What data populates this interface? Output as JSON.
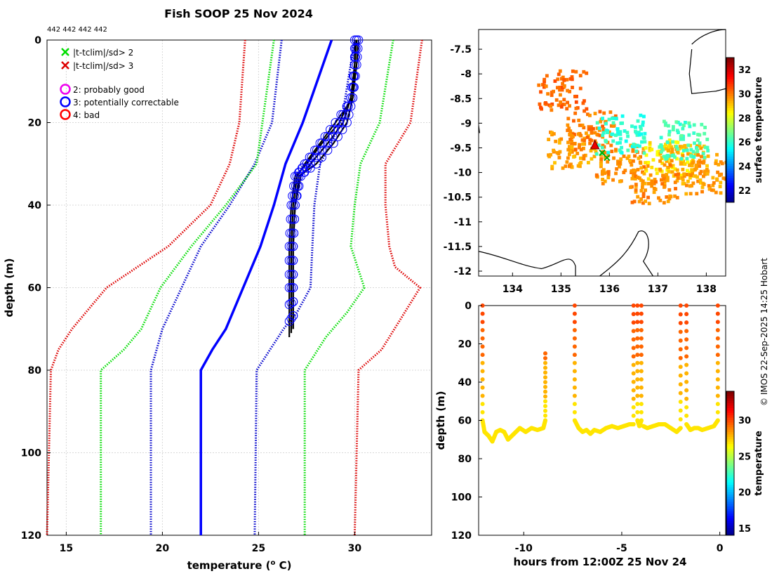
{
  "title": "Fish SOOP 25 Nov 2024",
  "ids_label": "442 442 442 442",
  "credit": "© IMOS 22-Sep-2025 14:25 Hobart",
  "legend": [
    {
      "symbol": "x",
      "color": "#00dd00",
      "label": "|t-tclim|/sd> 2"
    },
    {
      "symbol": "x",
      "color": "#dd0000",
      "label": "|t-tclim|/sd> 3"
    },
    {
      "symbol": "o",
      "color": "#ee00ee",
      "label": "2: probably good"
    },
    {
      "symbol": "o",
      "color": "#0000ff",
      "label": "3: potentially correctable"
    },
    {
      "symbol": "o",
      "color": "#ff0000",
      "label": "4: bad"
    }
  ],
  "chart_data": [
    {
      "type": "line",
      "name": "temperature-profile",
      "xlabel": "temperature (o C)",
      "ylabel": "depth (m)",
      "xlim": [
        14,
        34
      ],
      "ylim": [
        0,
        120
      ],
      "y_reversed": true,
      "x_ticks": [
        15,
        20,
        25,
        30
      ],
      "y_ticks": [
        0,
        20,
        40,
        60,
        80,
        100,
        120
      ],
      "grid": true,
      "series": [
        {
          "name": "climatology-mean",
          "color": "#0000ff",
          "style": "solid",
          "x": [
            28.8,
            27.3,
            26.4,
            25.8,
            25.1,
            24.2,
            23.3,
            22.6,
            22.0,
            22.0
          ],
          "y": [
            0,
            20,
            30,
            40,
            50,
            60,
            70,
            75,
            80,
            120
          ]
        },
        {
          "name": "mean-minus-1sd",
          "color": "#0000cc",
          "style": "dotted",
          "x": [
            26.2,
            25.7,
            24.8,
            23.5,
            22.0,
            21.0,
            20.0,
            19.4,
            19.4
          ],
          "y": [
            0,
            20,
            30,
            40,
            50,
            60,
            70,
            80,
            120
          ]
        },
        {
          "name": "mean-plus-1sd",
          "color": "#0000cc",
          "style": "dotted",
          "x": [
            30.0,
            29.3,
            28.2,
            27.9,
            27.8,
            27.7,
            27.0,
            26.3,
            24.9,
            24.8
          ],
          "y": [
            0,
            20,
            30,
            40,
            50,
            60,
            66,
            70,
            80,
            120
          ]
        },
        {
          "name": "mean-minus-2sd",
          "color": "#00dd00",
          "style": "dotted",
          "x": [
            25.8,
            25.2,
            24.9,
            23.3,
            21.5,
            19.9,
            18.9,
            18.0,
            16.8,
            16.8
          ],
          "y": [
            0,
            20,
            30,
            40,
            50,
            60,
            70,
            75,
            80,
            120
          ]
        },
        {
          "name": "mean-plus-2sd",
          "color": "#00dd00",
          "style": "dotted",
          "x": [
            32.0,
            31.3,
            30.3,
            30.0,
            29.8,
            30.5,
            29.6,
            28.5,
            27.4,
            27.4
          ],
          "y": [
            0,
            20,
            30,
            40,
            50,
            60,
            66,
            72,
            80,
            120
          ]
        },
        {
          "name": "mean-minus-3sd",
          "color": "#dd0000",
          "style": "dotted",
          "x": [
            24.3,
            24.0,
            23.5,
            22.5,
            20.3,
            17.1,
            15.3,
            14.6,
            14.2,
            14.0
          ],
          "y": [
            0,
            20,
            30,
            40,
            50,
            60,
            70,
            75,
            80,
            120
          ]
        },
        {
          "name": "mean-plus-3sd",
          "color": "#dd0000",
          "style": "dotted",
          "x": [
            33.5,
            33.2,
            32.9,
            31.6,
            31.6,
            31.8,
            32.1,
            33.4,
            31.4,
            30.2,
            30.0
          ],
          "y": [
            0,
            10,
            20,
            30,
            40,
            50,
            55,
            60,
            75,
            80,
            120
          ]
        },
        {
          "name": "observed-cast-1",
          "color": "#000000",
          "style": "solid",
          "x": [
            30.1,
            30.0,
            29.8,
            29.2,
            28.3,
            27.5,
            26.9,
            26.7,
            26.6,
            26.6,
            26.6
          ],
          "y": [
            0,
            6,
            14,
            20,
            25,
            30,
            33,
            40,
            50,
            60,
            72
          ]
        },
        {
          "name": "observed-cast-2",
          "color": "#000000",
          "style": "solid",
          "x": [
            30.0,
            30.0,
            29.9,
            29.6,
            28.9,
            28.0,
            27.1,
            26.9,
            26.8,
            26.8,
            26.8
          ],
          "y": [
            0,
            6,
            14,
            20,
            25,
            30,
            33,
            40,
            50,
            60,
            70
          ]
        },
        {
          "name": "observed-cast-3",
          "color": "#000000",
          "style": "solid",
          "x": [
            30.2,
            30.1,
            29.9,
            29.0,
            28.2,
            27.4,
            27.0,
            26.8,
            26.7,
            26.7,
            26.7
          ],
          "y": [
            0,
            6,
            14,
            20,
            25,
            30,
            33,
            40,
            50,
            60,
            71
          ]
        },
        {
          "name": "observed-cast-4",
          "color": "#000000",
          "style": "solid",
          "x": [
            30.1,
            30.0,
            29.8,
            29.4,
            28.6,
            27.7,
            27.2,
            26.9,
            26.8,
            26.8,
            26.8
          ],
          "y": [
            0,
            6,
            14,
            20,
            25,
            30,
            33,
            40,
            50,
            60,
            70
          ]
        }
      ]
    },
    {
      "type": "heatmap",
      "name": "sea-surface-temperature-map",
      "xlim": [
        133.3,
        138.4
      ],
      "ylim": [
        -12.1,
        -7.1
      ],
      "x_ticks": [
        134,
        135,
        136,
        137,
        138
      ],
      "y_ticks": [
        -7.5,
        -8,
        -8.5,
        -9,
        -9.5,
        -10,
        -10.5,
        -11,
        -11.5,
        -12
      ],
      "colorbar": {
        "label": "surface temperature",
        "min": 21,
        "max": 33,
        "ticks": [
          22,
          24,
          26,
          28,
          30,
          32
        ]
      },
      "cells_description": "patchy SST mostly 29-31 C with few 26-27 C cells",
      "cells": [
        [
          135.2,
          -9.5,
          29.6
        ],
        [
          135.6,
          -9.1,
          30.1
        ],
        [
          136.2,
          -9.8,
          29.8
        ],
        [
          137.2,
          -9.7,
          28.8
        ],
        [
          137.5,
          -9.8,
          29.5
        ],
        [
          136.9,
          -10.2,
          29.9
        ],
        [
          135.0,
          -8.3,
          30.3
        ],
        [
          137.5,
          -9.3,
          26.3
        ],
        [
          138.0,
          -10.0,
          29.7
        ],
        [
          136.2,
          -9.2,
          26.0
        ]
      ],
      "drop_locations": [
        {
          "lon": 135.7,
          "lat": -9.45
        },
        {
          "lon": 135.85,
          "lat": -9.6
        },
        {
          "lon": 135.95,
          "lat": -9.7
        }
      ]
    },
    {
      "type": "scatter",
      "name": "depth-time-section",
      "xlabel": "hours from 12:00Z 25 Nov 24",
      "ylabel": "depth (m)",
      "xlim": [
        -12.3,
        0.3
      ],
      "ylim": [
        0,
        120
      ],
      "y_reversed": true,
      "x_ticks": [
        -10,
        -5,
        0
      ],
      "y_ticks": [
        0,
        20,
        40,
        60,
        80,
        100,
        120
      ],
      "colorbar": {
        "label": "temperature",
        "min": 14,
        "max": 34,
        "ticks": [
          15,
          20,
          25,
          30
        ]
      },
      "tracks": [
        {
          "x": [
            -12.1,
            -12.1,
            -12.0,
            -11.8,
            -11.6,
            -11.4,
            -11.2,
            -11.0,
            -10.8,
            -10.5,
            -10.2,
            -9.9,
            -9.6,
            -9.3,
            -9.0,
            -8.9,
            -8.9
          ],
          "y": [
            0,
            60,
            66,
            68,
            71,
            66,
            65,
            66,
            70,
            67,
            64,
            66,
            64,
            65,
            64,
            60,
            25
          ]
        },
        {
          "x": [
            -7.4,
            -7.4,
            -7.2,
            -7.0,
            -6.8,
            -6.6,
            -6.4,
            -6.1,
            -5.8,
            -5.5,
            -5.2,
            -4.9,
            -4.6,
            -4.4,
            -4.4
          ],
          "y": [
            0,
            60,
            64,
            66,
            65,
            67,
            65,
            66,
            64,
            63,
            64,
            63,
            62,
            62,
            0
          ]
        },
        {
          "x": [
            -4.2,
            -4.2,
            -4.1,
            -4.0,
            -4.0
          ],
          "y": [
            0,
            60,
            63,
            60,
            0
          ]
        },
        {
          "x": [
            -3.9,
            -3.7,
            -3.4,
            -3.1,
            -2.8,
            -2.5,
            -2.2,
            -2.0,
            -2.0
          ],
          "y": [
            63,
            64,
            63,
            62,
            62,
            64,
            66,
            64,
            0
          ]
        },
        {
          "x": [
            -1.7,
            -1.7,
            -1.5,
            -1.3,
            -1.1,
            -0.9,
            -0.6,
            -0.3,
            -0.1,
            -0.1
          ],
          "y": [
            0,
            62,
            65,
            64,
            64,
            65,
            64,
            63,
            60,
            0
          ]
        }
      ]
    }
  ]
}
